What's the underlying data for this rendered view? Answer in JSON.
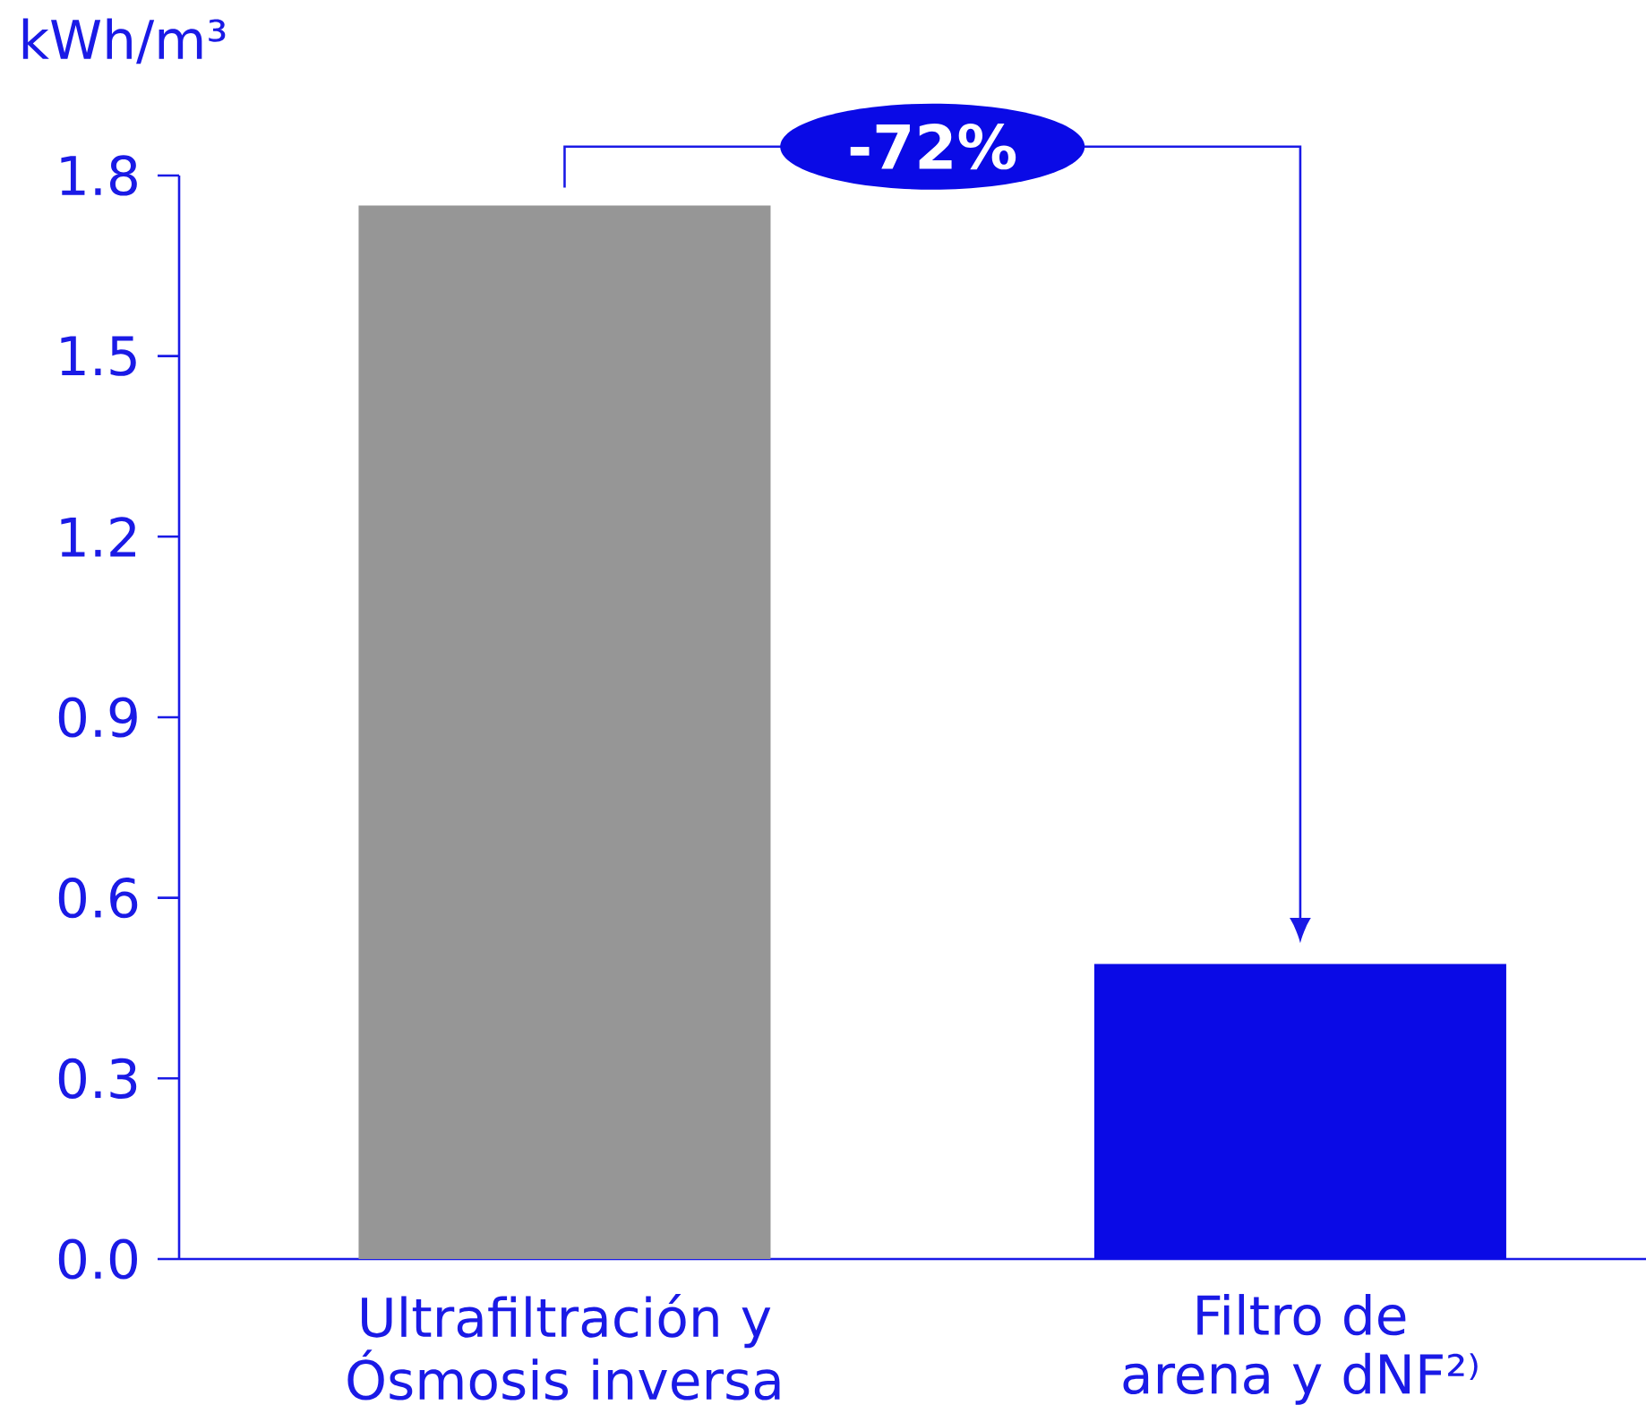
{
  "chart_data": {
    "type": "bar",
    "ylabel": "kWh/m³",
    "categories": [
      "Ultrafiltración y Ósmosis inversa",
      "Filtro de arena y dNF²⁾"
    ],
    "values": [
      1.75,
      0.49
    ],
    "colors": [
      "#969696",
      "#0a0ae6"
    ],
    "ylim": [
      0,
      1.8
    ],
    "yticks": [
      {
        "value": 0,
        "label": "0.0"
      },
      0.3,
      0.6,
      0.9,
      1.2,
      1.5,
      1.8
    ],
    "annotations": [
      "-72%"
    ]
  }
}
